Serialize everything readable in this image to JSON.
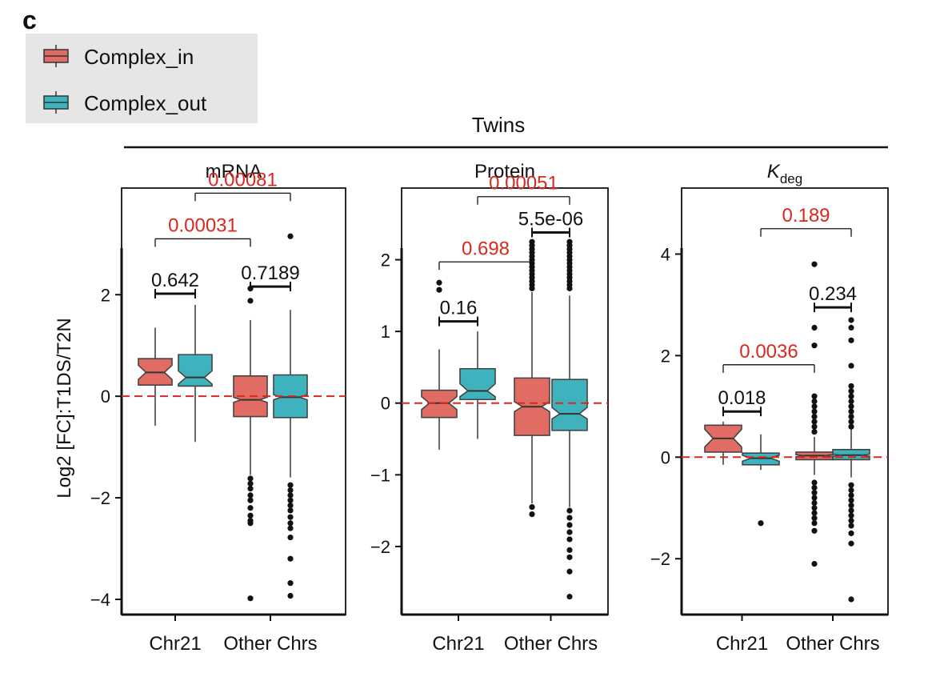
{
  "panel_letter": "c",
  "overline_title": "Twins",
  "y_label": "Log2 [FC]:T1DS/T2N",
  "legend": {
    "items": [
      {
        "label": "Complex_in",
        "color": "#e06c63"
      },
      {
        "label": "Complex_out",
        "color": "#3fb3bd"
      }
    ]
  },
  "colors": {
    "complex_in": "#e06c63",
    "complex_out": "#3fb3bd",
    "significant_pvalue": "#d9281e",
    "reference_line": "#d9281e"
  },
  "chart_data": [
    {
      "type": "box",
      "title": "mRNA",
      "categories": [
        "Chr21",
        "Other Chrs"
      ],
      "ylim": [
        -4.3,
        4.1
      ],
      "yticks": [
        -4,
        -2,
        0,
        2
      ],
      "ytick_labels": [
        "−4",
        "−2",
        "0",
        "2"
      ],
      "reference_line_y": 0,
      "series": [
        {
          "name": "Complex_in",
          "boxes": [
            {
              "category": "Chr21",
              "q1": 0.22,
              "median": 0.47,
              "q3": 0.74,
              "notch_low": 0.33,
              "notch_high": 0.61,
              "whisker_low": -0.58,
              "whisker_high": 1.35,
              "outliers": []
            },
            {
              "category": "Other Chrs",
              "q1": -0.4,
              "median": -0.07,
              "q3": 0.4,
              "notch_low": -0.12,
              "notch_high": -0.02,
              "whisker_low": -1.55,
              "whisker_high": 1.5,
              "outliers": [
                2.12,
                1.88,
                -1.62,
                -1.72,
                -1.82,
                -1.95,
                -2.05,
                -2.2,
                -2.35,
                -2.45,
                -2.5,
                -3.98
              ]
            }
          ]
        },
        {
          "name": "Complex_out",
          "boxes": [
            {
              "category": "Chr21",
              "q1": 0.2,
              "median": 0.37,
              "q3": 0.82,
              "notch_low": 0.24,
              "notch_high": 0.5,
              "whisker_low": -0.9,
              "whisker_high": 1.8,
              "outliers": []
            },
            {
              "category": "Other Chrs",
              "q1": -0.42,
              "median": -0.02,
              "q3": 0.42,
              "notch_low": -0.07,
              "notch_high": 0.03,
              "whisker_low": -1.6,
              "whisker_high": 1.7,
              "outliers": [
                3.15,
                -1.75,
                -1.85,
                -1.95,
                -2.05,
                -2.15,
                -2.25,
                -2.38,
                -2.5,
                -2.6,
                -2.78,
                -3.2,
                -3.68,
                -3.93
              ]
            }
          ]
        }
      ],
      "comparisons": [
        {
          "from": 0,
          "to": 1,
          "y": 2.02,
          "label": "0.642",
          "significant": false,
          "style": "bracket"
        },
        {
          "from": 2,
          "to": 3,
          "y": 2.16,
          "label": "0.7189",
          "significant": false,
          "style": "bracket"
        },
        {
          "from": 0,
          "to": 2,
          "y": 3.1,
          "label": "0.00031",
          "significant": true,
          "style": "bar"
        },
        {
          "from": 1,
          "to": 3,
          "y": 4.0,
          "label": "0.00081",
          "significant": true,
          "style": "bar"
        }
      ]
    },
    {
      "type": "box",
      "title": "Protein",
      "categories": [
        "Chr21",
        "Other Chrs"
      ],
      "ylim": [
        -2.95,
        3.0
      ],
      "yticks": [
        -2,
        -1,
        0,
        1,
        2
      ],
      "ytick_labels": [
        "−2",
        "−1",
        "0",
        "1",
        "2"
      ],
      "reference_line_y": 0,
      "series": [
        {
          "name": "Complex_in",
          "boxes": [
            {
              "category": "Chr21",
              "q1": -0.2,
              "median": 0.0,
              "q3": 0.18,
              "notch_low": -0.09,
              "notch_high": 0.09,
              "whisker_low": -0.65,
              "whisker_high": 0.75,
              "outliers": [
                1.68,
                1.58
              ]
            },
            {
              "category": "Other Chrs",
              "q1": -0.45,
              "median": -0.05,
              "q3": 0.35,
              "notch_low": -0.12,
              "notch_high": 0.02,
              "whisker_low": -1.4,
              "whisker_high": 1.55,
              "outliers": [
                2.25,
                2.2,
                2.15,
                2.1,
                2.05,
                2.0,
                1.95,
                1.9,
                1.85,
                1.8,
                1.75,
                1.7,
                1.65,
                1.6,
                -1.45,
                -1.55
              ]
            }
          ]
        },
        {
          "name": "Complex_out",
          "boxes": [
            {
              "category": "Chr21",
              "q1": 0.05,
              "median": 0.17,
              "q3": 0.48,
              "notch_low": 0.09,
              "notch_high": 0.27,
              "whisker_low": -0.5,
              "whisker_high": 1.0,
              "outliers": []
            },
            {
              "category": "Other Chrs",
              "q1": -0.38,
              "median": -0.15,
              "q3": 0.33,
              "notch_low": -0.22,
              "notch_high": -0.06,
              "whisker_low": -1.45,
              "whisker_high": 1.5,
              "outliers": [
                2.25,
                2.2,
                2.15,
                2.1,
                2.05,
                2.0,
                1.95,
                1.9,
                1.85,
                1.8,
                1.75,
                1.7,
                1.65,
                1.6,
                -1.5,
                -1.6,
                -1.7,
                -1.8,
                -1.9,
                -2.05,
                -2.15,
                -2.35,
                -2.7
              ]
            }
          ]
        }
      ],
      "comparisons": [
        {
          "from": 0,
          "to": 1,
          "y": 1.14,
          "label": "0.16",
          "significant": false,
          "style": "bracket"
        },
        {
          "from": 2,
          "to": 3,
          "y": 2.38,
          "label": "5.5e-06",
          "significant": false,
          "style": "bracket"
        },
        {
          "from": 0,
          "to": 2,
          "y": 1.97,
          "label": "0.698",
          "significant": true,
          "style": "bar"
        },
        {
          "from": 1,
          "to": 3,
          "y": 2.88,
          "label": "0.00051",
          "significant": true,
          "style": "bar"
        }
      ]
    },
    {
      "type": "box",
      "title": "K",
      "title_subscript": "deg",
      "categories": [
        "Chr21",
        "Other Chrs"
      ],
      "ylim": [
        -3.1,
        5.3
      ],
      "yticks": [
        -2,
        0,
        2,
        4
      ],
      "ytick_labels": [
        "−2",
        "0",
        "2",
        "4"
      ],
      "reference_line_y": 0,
      "series": [
        {
          "name": "Complex_in",
          "boxes": [
            {
              "category": "Chr21",
              "q1": 0.1,
              "median": 0.37,
              "q3": 0.63,
              "notch_low": 0.2,
              "notch_high": 0.55,
              "whisker_low": -0.15,
              "whisker_high": 0.7,
              "outliers": []
            },
            {
              "category": "Other Chrs",
              "q1": -0.05,
              "median": 0.03,
              "q3": 0.1,
              "notch_low": 0.01,
              "notch_high": 0.05,
              "whisker_low": -0.35,
              "whisker_high": 0.4,
              "outliers": [
                3.8,
                2.55,
                2.2,
                1.2,
                1.1,
                1.0,
                0.9,
                0.8,
                0.7,
                0.6,
                0.5,
                -0.5,
                -0.6,
                -0.7,
                -0.8,
                -0.9,
                -1.0,
                -1.1,
                -1.2,
                -1.3,
                -1.45,
                -2.1
              ]
            }
          ]
        },
        {
          "name": "Complex_out",
          "boxes": [
            {
              "category": "Chr21",
              "q1": -0.15,
              "median": -0.02,
              "q3": 0.08,
              "notch_low": -0.08,
              "notch_high": 0.04,
              "whisker_low": -0.25,
              "whisker_high": 0.45,
              "outliers": [
                -1.3
              ]
            },
            {
              "category": "Other Chrs",
              "q1": -0.05,
              "median": 0.04,
              "q3": 0.15,
              "notch_low": 0.02,
              "notch_high": 0.06,
              "whisker_low": -0.4,
              "whisker_high": 0.55,
              "outliers": [
                2.7,
                2.55,
                2.3,
                1.8,
                1.4,
                1.3,
                1.2,
                1.1,
                1.0,
                0.9,
                0.8,
                0.7,
                0.6,
                -0.55,
                -0.65,
                -0.75,
                -0.85,
                -0.95,
                -1.05,
                -1.15,
                -1.25,
                -1.35,
                -1.5,
                -1.7,
                -2.8
              ]
            }
          ]
        }
      ],
      "comparisons": [
        {
          "from": 0,
          "to": 1,
          "y": 0.9,
          "label": "0.018",
          "significant": false,
          "style": "bracket"
        },
        {
          "from": 2,
          "to": 3,
          "y": 2.95,
          "label": "0.234",
          "significant": false,
          "style": "bracket"
        },
        {
          "from": 0,
          "to": 2,
          "y": 1.82,
          "label": "0.0036",
          "significant": true,
          "style": "bar"
        },
        {
          "from": 1,
          "to": 3,
          "y": 4.5,
          "label": "0.189",
          "significant": true,
          "style": "bar"
        }
      ]
    }
  ]
}
